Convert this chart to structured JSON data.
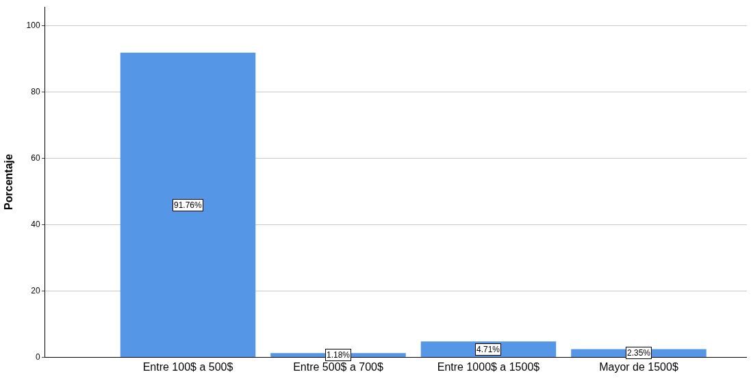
{
  "chart_data": {
    "type": "bar",
    "ylabel": "Porcentaje",
    "categories": [
      "Entre 100$ a 500$",
      "Entre 500$ a 700$",
      "Entre 1000$ a 1500$",
      "Mayor de 1500$"
    ],
    "values": [
      91.76,
      1.18,
      4.71,
      2.35
    ],
    "value_labels": [
      "91.76%",
      "1.18%",
      "4.71%",
      "2.35%"
    ],
    "color": "#5596e6",
    "ylim": [
      0,
      105.6
    ],
    "yticks": [
      0,
      20,
      40,
      60,
      80,
      100
    ],
    "grid": "y"
  }
}
